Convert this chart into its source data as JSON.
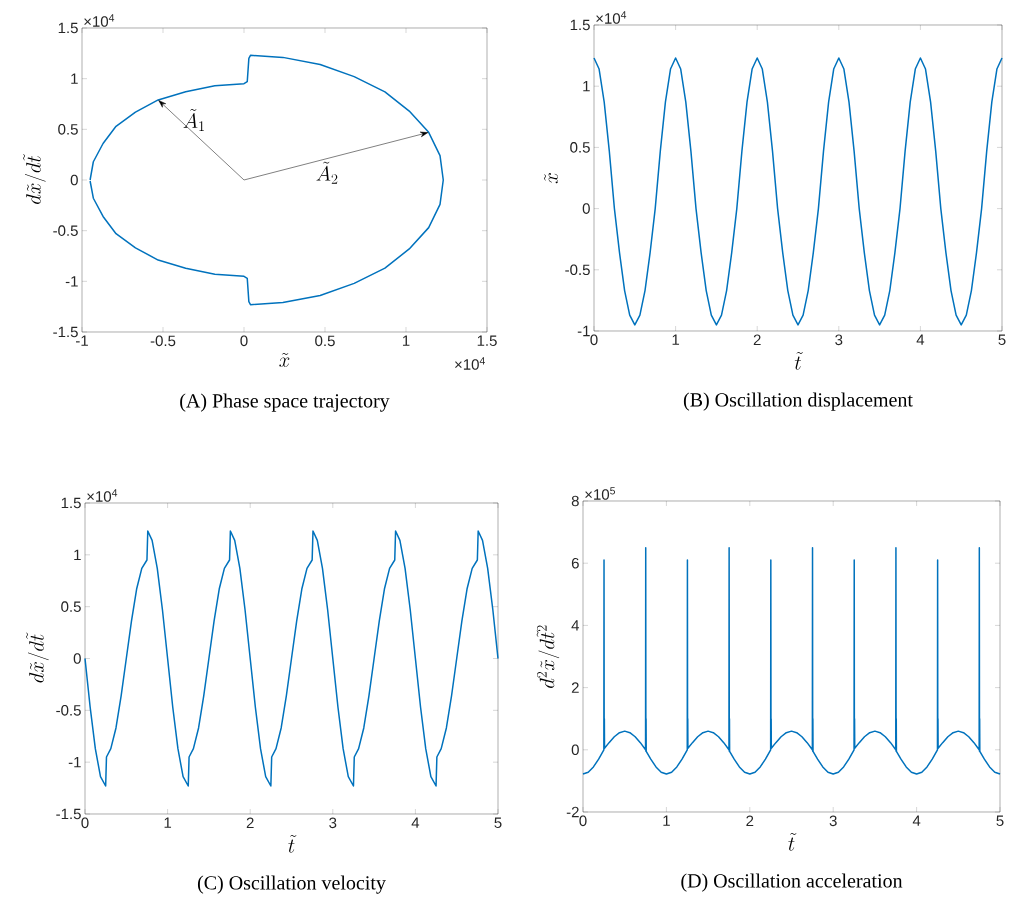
{
  "chart_data": [
    {
      "type": "line",
      "title": "(A) Phase space trajectory",
      "xlabel": "\\tilde{x}",
      "ylabel": "d\\tilde{x}/d\\tilde{t}",
      "xlim": [
        -1,
        1.5
      ],
      "ylim": [
        -1.5,
        1.5
      ],
      "xticks": [
        -1,
        -0.5,
        0,
        0.5,
        1,
        1.5
      ],
      "yticks": [
        -1.5,
        -1,
        -0.5,
        0,
        0.5,
        1,
        1.5
      ],
      "annotations": [
        "×10$^{4}$",
        "×10$^{4}$",
        "\\tilde{A}_1",
        "\\tilde{A}_2"
      ],
      "series": [
        {
          "color": "#0072bd",
          "x": [
            -0.95,
            -0.93,
            -0.87,
            -0.79,
            -0.67,
            -0.53,
            -0.36,
            -0.18,
            0,
            0.02,
            0.03,
            0.04,
            0.24,
            0.47,
            0.68,
            0.87,
            1.02,
            1.14,
            1.21,
            1.23,
            1.21,
            1.14,
            1.02,
            0.87,
            0.68,
            0.47,
            0.24,
            0.04,
            0.03,
            0.02,
            0,
            -0.18,
            -0.36,
            -0.53,
            -0.67,
            -0.79,
            -0.87,
            -0.93,
            -0.95
          ],
          "values": [
            0,
            0.18,
            0.36,
            0.53,
            0.67,
            0.79,
            0.87,
            0.93,
            0.95,
            0.97,
            1.2,
            1.23,
            1.21,
            1.14,
            1.02,
            0.87,
            0.68,
            0.47,
            0.24,
            0,
            -0.24,
            -0.47,
            -0.68,
            -0.87,
            -1.02,
            -1.14,
            -1.21,
            -1.23,
            -1.2,
            -0.97,
            -0.95,
            -0.93,
            -0.87,
            -0.79,
            -0.67,
            -0.53,
            -0.36,
            -0.18,
            -0.01
          ]
        }
      ]
    },
    {
      "type": "line",
      "title": "(B) Oscillation displacement",
      "xlabel": "\\tilde{t}",
      "ylabel": "\\tilde{x}",
      "xlim": [
        0,
        5
      ],
      "ylim": [
        -1,
        1.5
      ],
      "xticks": [
        0,
        1,
        2,
        3,
        4,
        5
      ],
      "yticks": [
        -1,
        -0.5,
        0,
        0.5,
        1,
        1.5
      ],
      "annotations": [
        "×10$^{4}$"
      ],
      "series": [
        {
          "color": "#0072bd",
          "x": [
            0,
            0.0625,
            0.125,
            0.1875,
            0.25,
            0.3125,
            0.375,
            0.4375,
            0.5,
            0.5625,
            0.625,
            0.6875,
            0.75,
            0.8125,
            0.875,
            0.9375,
            1,
            1.0625,
            1.125,
            1.1875,
            1.25,
            1.3125,
            1.375,
            1.4375,
            1.5,
            1.5625,
            1.625,
            1.6875,
            1.75,
            1.8125,
            1.875,
            1.9375,
            2,
            2.0625,
            2.125,
            2.1875,
            2.25,
            2.3125,
            2.375,
            2.4375,
            2.5,
            2.5625,
            2.625,
            2.6875,
            2.75,
            2.8125,
            2.875,
            2.9375,
            3,
            3.0625,
            3.125,
            3.1875,
            3.25,
            3.3125,
            3.375,
            3.4375,
            3.5,
            3.5625,
            3.625,
            3.6875,
            3.75,
            3.8125,
            3.875,
            3.9375,
            4,
            4.0625,
            4.125,
            4.1875,
            4.25,
            4.3125,
            4.375,
            4.4375,
            4.5,
            4.5625,
            4.625,
            4.6875,
            4.75,
            4.8125,
            4.875,
            4.9375,
            5
          ],
          "values": [
            1.23,
            1.14,
            0.87,
            0.47,
            0,
            -0.36,
            -0.67,
            -0.87,
            -0.95,
            -0.87,
            -0.67,
            -0.36,
            0,
            0.47,
            0.87,
            1.14,
            1.23,
            1.14,
            0.87,
            0.47,
            0,
            -0.36,
            -0.67,
            -0.87,
            -0.95,
            -0.87,
            -0.67,
            -0.36,
            0,
            0.47,
            0.87,
            1.14,
            1.23,
            1.14,
            0.87,
            0.47,
            0,
            -0.36,
            -0.67,
            -0.87,
            -0.95,
            -0.87,
            -0.67,
            -0.36,
            0,
            0.47,
            0.87,
            1.14,
            1.23,
            1.14,
            0.87,
            0.47,
            0,
            -0.36,
            -0.67,
            -0.87,
            -0.95,
            -0.87,
            -0.67,
            -0.36,
            0,
            0.47,
            0.87,
            1.14,
            1.23,
            1.14,
            0.87,
            0.47,
            0,
            -0.36,
            -0.67,
            -0.87,
            -0.95,
            -0.87,
            -0.67,
            -0.36,
            0,
            0.47,
            0.87,
            1.14,
            1.23
          ]
        }
      ]
    },
    {
      "type": "line",
      "title": "(C) Oscillation velocity",
      "xlabel": "\\tilde{t}",
      "ylabel": "d\\tilde{x}/d\\tilde{t}",
      "xlim": [
        0,
        5
      ],
      "ylim": [
        -1.5,
        1.5
      ],
      "xticks": [
        0,
        1,
        2,
        3,
        4,
        5
      ],
      "yticks": [
        -1.5,
        -1,
        -0.5,
        0,
        0.5,
        1,
        1.5
      ],
      "annotations": [
        "×10$^{4}$"
      ],
      "series": [
        {
          "color": "#0072bd",
          "x": [
            0,
            0.0625,
            0.125,
            0.1875,
            0.25,
            0.26,
            0.3125,
            0.375,
            0.4375,
            0.5,
            0.5625,
            0.625,
            0.6875,
            0.75,
            0.76,
            0.8125,
            0.875,
            0.9375,
            1,
            1.0625,
            1.125,
            1.1875,
            1.25,
            1.26,
            1.3125,
            1.375,
            1.4375,
            1.5,
            1.5625,
            1.625,
            1.6875,
            1.75,
            1.76,
            1.8125,
            1.875,
            1.9375,
            2,
            2.0625,
            2.125,
            2.1875,
            2.25,
            2.26,
            2.3125,
            2.375,
            2.4375,
            2.5,
            2.5625,
            2.625,
            2.6875,
            2.75,
            2.76,
            2.8125,
            2.875,
            2.9375,
            3,
            3.0625,
            3.125,
            3.1875,
            3.25,
            3.26,
            3.3125,
            3.375,
            3.4375,
            3.5,
            3.5625,
            3.625,
            3.6875,
            3.75,
            3.76,
            3.8125,
            3.875,
            3.9375,
            4,
            4.0625,
            4.125,
            4.1875,
            4.25,
            4.26,
            4.3125,
            4.375,
            4.4375,
            4.5,
            4.5625,
            4.625,
            4.6875,
            4.75,
            4.76,
            4.8125,
            4.875,
            4.9375,
            5
          ],
          "values": [
            0,
            -0.47,
            -0.87,
            -1.14,
            -1.23,
            -0.95,
            -0.87,
            -0.67,
            -0.36,
            0,
            0.36,
            0.67,
            0.87,
            0.95,
            1.23,
            1.14,
            0.87,
            0.47,
            0,
            -0.47,
            -0.87,
            -1.14,
            -1.23,
            -0.95,
            -0.87,
            -0.67,
            -0.36,
            0,
            0.36,
            0.67,
            0.87,
            0.95,
            1.23,
            1.14,
            0.87,
            0.47,
            0,
            -0.47,
            -0.87,
            -1.14,
            -1.23,
            -0.95,
            -0.87,
            -0.67,
            -0.36,
            0,
            0.36,
            0.67,
            0.87,
            0.95,
            1.23,
            1.14,
            0.87,
            0.47,
            0,
            -0.47,
            -0.87,
            -1.14,
            -1.23,
            -0.95,
            -0.87,
            -0.67,
            -0.36,
            0,
            0.36,
            0.67,
            0.87,
            0.95,
            1.23,
            1.14,
            0.87,
            0.47,
            0,
            -0.47,
            -0.87,
            -1.14,
            -1.23,
            -0.95,
            -0.87,
            -0.67,
            -0.36,
            0,
            0.36,
            0.67,
            0.87,
            0.95,
            1.23,
            1.14,
            0.87,
            0.47,
            0
          ]
        }
      ]
    },
    {
      "type": "line",
      "title": "(D) Oscillation acceleration",
      "xlabel": "\\tilde{t}",
      "ylabel": "d^2\\tilde{x}/d\\tilde{t}^2",
      "xlim": [
        0,
        5
      ],
      "ylim": [
        -2,
        8
      ],
      "xticks": [
        0,
        1,
        2,
        3,
        4,
        5
      ],
      "yticks": [
        -2,
        0,
        2,
        4,
        6,
        8
      ],
      "annotations": [
        "×10$^{5}$"
      ],
      "series": [
        {
          "color": "#0072bd",
          "x": [
            0,
            0.0625,
            0.125,
            0.1875,
            0.25,
            0.252,
            0.254,
            0.256,
            0.258,
            0.3125,
            0.375,
            0.4375,
            0.5,
            0.5625,
            0.625,
            0.6875,
            0.75,
            0.752,
            0.754,
            0.756,
            0.758,
            0.8125,
            0.875,
            0.9375,
            1,
            1.0625,
            1.125,
            1.1875,
            1.25,
            1.252,
            1.254,
            1.256,
            1.258,
            1.3125,
            1.375,
            1.4375,
            1.5,
            1.5625,
            1.625,
            1.6875,
            1.75,
            1.752,
            1.754,
            1.756,
            1.758,
            1.8125,
            1.875,
            1.9375,
            2,
            2.0625,
            2.125,
            2.1875,
            2.25,
            2.252,
            2.254,
            2.256,
            2.258,
            2.3125,
            2.375,
            2.4375,
            2.5,
            2.5625,
            2.625,
            2.6875,
            2.75,
            2.752,
            2.754,
            2.756,
            2.758,
            2.8125,
            2.875,
            2.9375,
            3,
            3.0625,
            3.125,
            3.1875,
            3.25,
            3.252,
            3.254,
            3.256,
            3.258,
            3.3125,
            3.375,
            3.4375,
            3.5,
            3.5625,
            3.625,
            3.6875,
            3.75,
            3.752,
            3.754,
            3.756,
            3.758,
            3.8125,
            3.875,
            3.9375,
            4,
            4.0625,
            4.125,
            4.1875,
            4.25,
            4.252,
            4.254,
            4.256,
            4.258,
            4.3125,
            4.375,
            4.4375,
            4.5,
            4.5625,
            4.625,
            4.6875,
            4.75,
            4.752,
            4.754,
            4.756,
            4.758,
            4.8125,
            4.875,
            4.9375,
            5
          ],
          "values": [
            -0.78,
            -0.72,
            -0.55,
            -0.3,
            0,
            6.1,
            0.05,
            1,
            0.05,
            0.23,
            0.42,
            0.55,
            0.6,
            0.55,
            0.42,
            0.23,
            0,
            6.5,
            -0.05,
            1,
            -0.05,
            -0.3,
            -0.55,
            -0.72,
            -0.78,
            -0.72,
            -0.55,
            -0.3,
            0,
            6.1,
            0.05,
            1,
            0.05,
            0.23,
            0.42,
            0.55,
            0.6,
            0.55,
            0.42,
            0.23,
            0,
            6.5,
            -0.05,
            1,
            -0.05,
            -0.3,
            -0.55,
            -0.72,
            -0.78,
            -0.72,
            -0.55,
            -0.3,
            0,
            6.1,
            0.05,
            1,
            0.05,
            0.23,
            0.42,
            0.55,
            0.6,
            0.55,
            0.42,
            0.23,
            0,
            6.5,
            -0.05,
            1,
            -0.05,
            -0.3,
            -0.55,
            -0.72,
            -0.78,
            -0.72,
            -0.55,
            -0.3,
            0,
            6.1,
            0.05,
            1,
            0.05,
            0.23,
            0.42,
            0.55,
            0.6,
            0.55,
            0.42,
            0.23,
            0,
            6.5,
            -0.05,
            1,
            -0.05,
            -0.3,
            -0.55,
            -0.72,
            -0.78,
            -0.72,
            -0.55,
            -0.3,
            0,
            6.1,
            0.05,
            1,
            0.05,
            0.23,
            0.42,
            0.55,
            0.6,
            0.55,
            0.42,
            0.23,
            0,
            6.5,
            -0.05,
            1,
            -0.05,
            -0.3,
            -0.55,
            -0.72,
            -0.78
          ]
        }
      ]
    }
  ]
}
